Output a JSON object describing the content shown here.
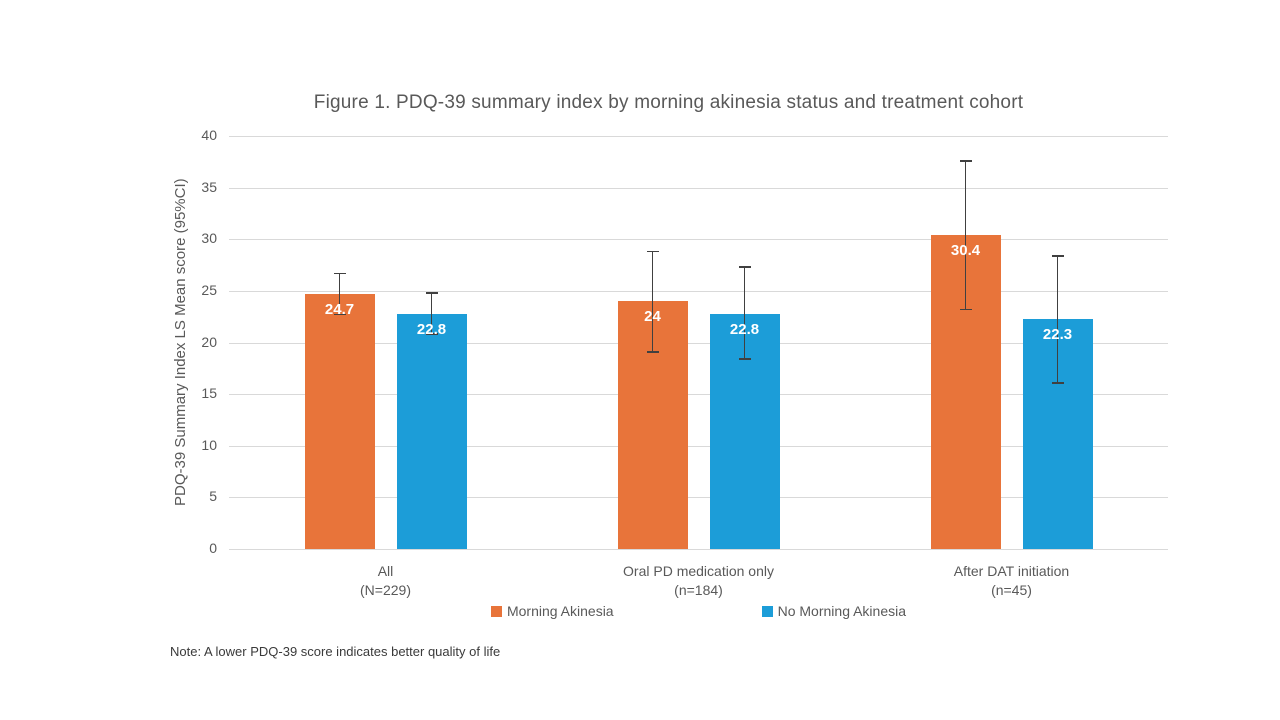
{
  "note": "Note: A lower PDQ-39 score indicates better quality of life",
  "colors": {
    "morning_akinesia": "#E8743A",
    "no_morning_akinesia": "#1C9DD8",
    "gridline": "#D9D9D9",
    "error_bar": "#404040",
    "axis_text": "#595959",
    "bar_label_text": "#FFFFFF",
    "background": "#FFFFFF"
  },
  "chart_data": {
    "type": "bar",
    "title": "Figure 1. PDQ-39 summary index by morning akinesia status and treatment cohort",
    "ylabel": "PDQ-39 Summary Index LS Mean score (95%CI)",
    "xlabel": "",
    "ylim": [
      0,
      40
    ],
    "yticks": [
      0,
      5,
      10,
      15,
      20,
      25,
      30,
      35,
      40
    ],
    "grid": true,
    "legend_position": "bottom",
    "categories": [
      {
        "label": "All",
        "sublabel": "(N=229)"
      },
      {
        "label": "Oral PD medication only",
        "sublabel": "(n=184)"
      },
      {
        "label": "After DAT initiation",
        "sublabel": "(n=45)"
      }
    ],
    "series": [
      {
        "name": "Morning Akinesia",
        "color": "#E8743A",
        "values": [
          24.7,
          24,
          30.4
        ],
        "labels": [
          "24.7",
          "24",
          "30.4"
        ],
        "ci_low": [
          22.7,
          19.1,
          23.2
        ],
        "ci_high": [
          26.7,
          28.8,
          37.6
        ]
      },
      {
        "name": "No Morning Akinesia",
        "color": "#1C9DD8",
        "values": [
          22.8,
          22.8,
          22.3
        ],
        "labels": [
          "22.8",
          "22.8",
          "22.3"
        ],
        "ci_low": [
          20.8,
          18.4,
          16.1
        ],
        "ci_high": [
          24.8,
          27.3,
          28.4
        ]
      }
    ]
  }
}
